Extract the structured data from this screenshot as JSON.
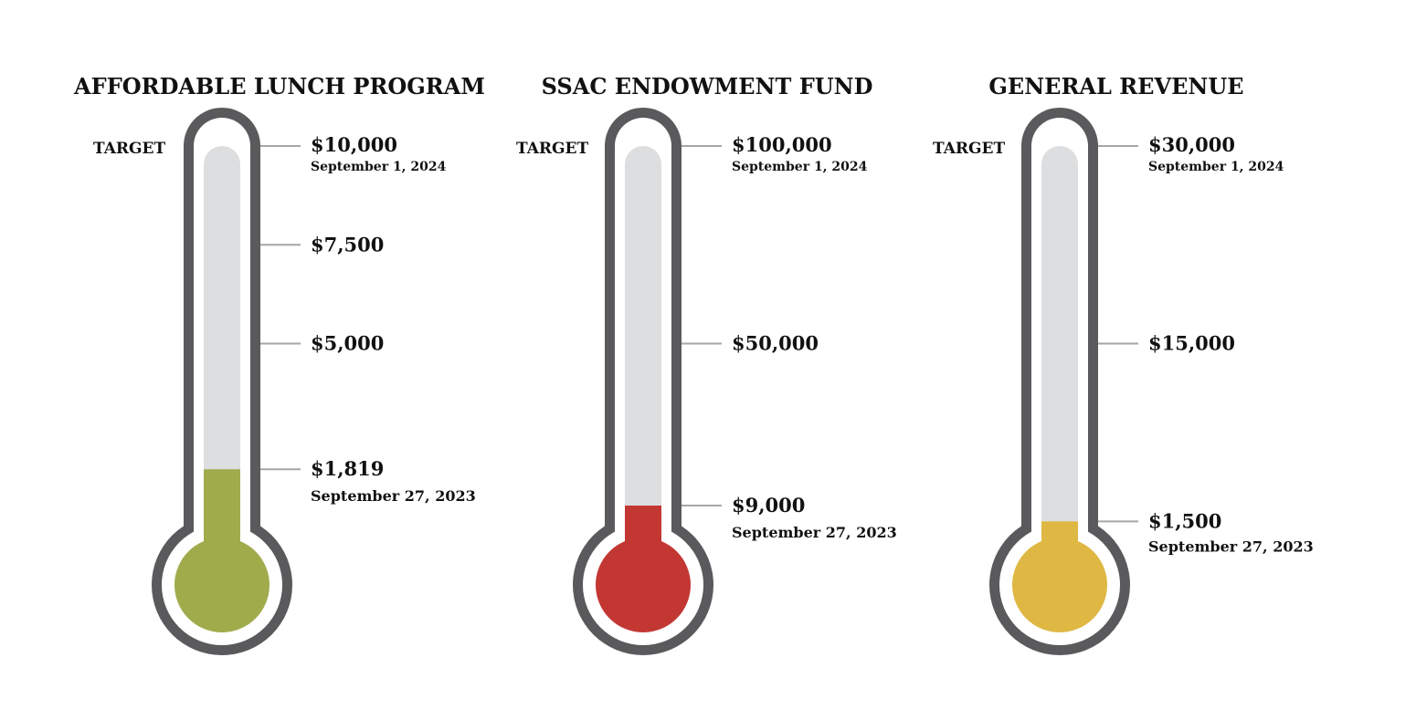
{
  "colors": {
    "frame": "#5a5a5c",
    "gap": "#ffffff",
    "tube": "#dddedf",
    "tick": "#a6a6a6",
    "fill_green": "#a0ac4c",
    "fill_red": "#c33733",
    "fill_yellow": "#dfb844"
  },
  "chart_data": [
    {
      "type": "thermometer",
      "title": "AFFORDABLE LUNCH PROGRAM",
      "target_label": "TARGET",
      "target": 10000,
      "target_text": "$10,000",
      "target_date": "September 1, 2024",
      "current": 1819,
      "current_text": "$1,819",
      "current_date": "September 27, 2023",
      "ticks": [
        {
          "value": 7500,
          "label": "$7,500"
        },
        {
          "value": 5000,
          "label": "$5,000"
        }
      ],
      "fill_color": "#a0ac4c"
    },
    {
      "type": "thermometer",
      "title": "SSAC ENDOWMENT FUND",
      "target_label": "TARGET",
      "target": 100000,
      "target_text": "$100,000",
      "target_date": "September 1, 2024",
      "current": 9000,
      "current_text": "$9,000",
      "current_date": "September 27, 2023",
      "ticks": [
        {
          "value": 50000,
          "label": "$50,000"
        }
      ],
      "fill_color": "#c33733"
    },
    {
      "type": "thermometer",
      "title": "GENERAL REVENUE",
      "target_label": "TARGET",
      "target": 30000,
      "target_text": "$30,000",
      "target_date": "September 1, 2024",
      "current": 1500,
      "current_text": "$1,500",
      "current_date": "September 27, 2023",
      "ticks": [
        {
          "value": 15000,
          "label": "$15,000"
        }
      ],
      "fill_color": "#dfb844"
    }
  ]
}
